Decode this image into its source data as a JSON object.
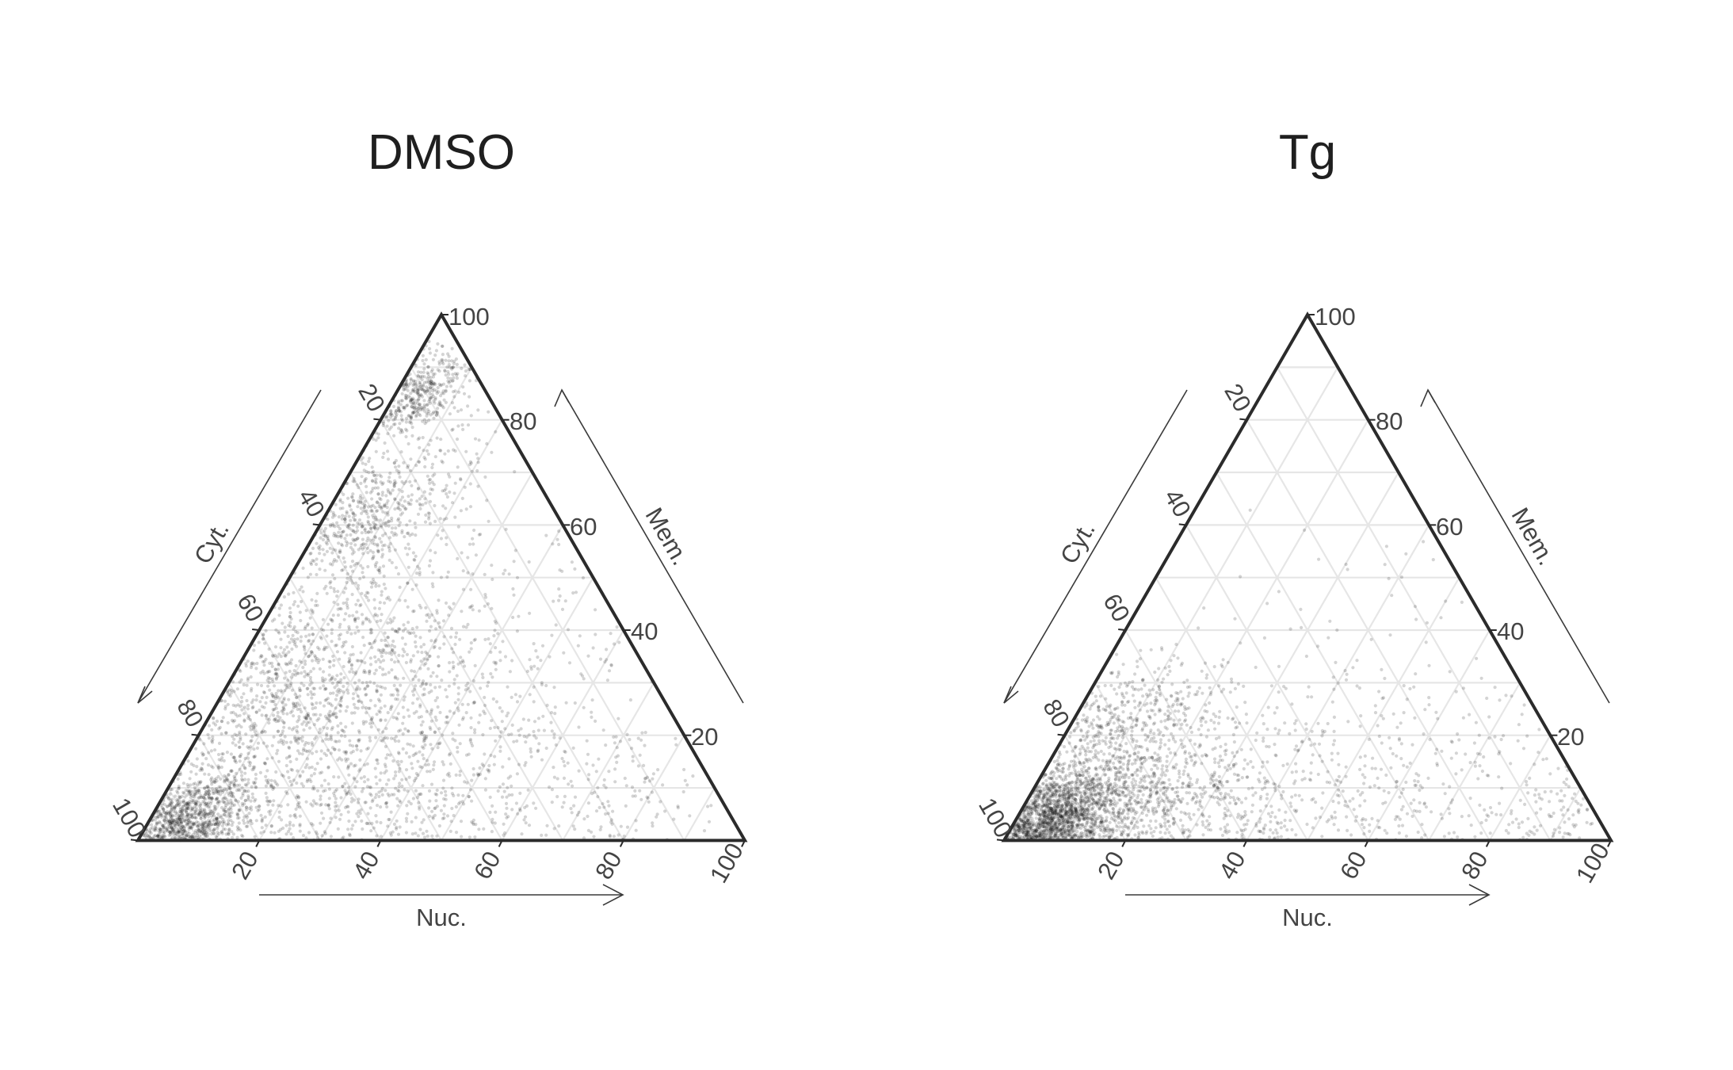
{
  "chart_data": [
    {
      "type": "scatter",
      "subtype": "ternary",
      "title": "DMSO",
      "axes": {
        "bottom": {
          "label": "Nuc.",
          "ticks": [
            "20",
            "40",
            "60",
            "80",
            "100"
          ]
        },
        "left": {
          "label": "Cyt.",
          "ticks": [
            "20",
            "40",
            "60",
            "80",
            "100"
          ]
        },
        "right": {
          "label": "Mem.",
          "ticks": [
            "20",
            "40",
            "60",
            "80",
            "100"
          ]
        }
      },
      "range": [
        0,
        100
      ],
      "grid": true,
      "point_color": "#000000",
      "density_clusters": [
        {
          "nuc": 6,
          "mem": 3,
          "count": 1400,
          "spread": 5
        },
        {
          "nuc": 12,
          "mem": 30,
          "count": 1200,
          "spread": 11
        },
        {
          "nuc": 7,
          "mem": 62,
          "count": 700,
          "spread": 7
        },
        {
          "nuc": 4,
          "mem": 85,
          "count": 500,
          "spread": 4
        },
        {
          "nuc": 30,
          "mem": 8,
          "count": 700,
          "spread": 12
        },
        {
          "nuc": 55,
          "mem": 3,
          "count": 400,
          "spread": 15
        },
        {
          "nuc": 82,
          "mem": 2,
          "count": 200,
          "spread": 10
        },
        {
          "nuc": 35,
          "mem": 30,
          "count": 450,
          "spread": 18
        }
      ]
    },
    {
      "type": "scatter",
      "subtype": "ternary",
      "title": "Tg",
      "axes": {
        "bottom": {
          "label": "Nuc.",
          "ticks": [
            "20",
            "40",
            "60",
            "80",
            "100"
          ]
        },
        "left": {
          "label": "Cyt.",
          "ticks": [
            "20",
            "40",
            "60",
            "80",
            "100"
          ]
        },
        "right": {
          "label": "Mem.",
          "ticks": [
            "20",
            "40",
            "60",
            "80",
            "100"
          ]
        }
      },
      "range": [
        0,
        100
      ],
      "grid": true,
      "point_color": "#000000",
      "density_clusters": [
        {
          "nuc": 5,
          "mem": 3,
          "count": 2200,
          "spread": 5
        },
        {
          "nuc": 14,
          "mem": 6,
          "count": 1200,
          "spread": 9
        },
        {
          "nuc": 7,
          "mem": 22,
          "count": 450,
          "spread": 7
        },
        {
          "nuc": 35,
          "mem": 3,
          "count": 700,
          "spread": 14
        },
        {
          "nuc": 65,
          "mem": 2,
          "count": 450,
          "spread": 14
        },
        {
          "nuc": 90,
          "mem": 2,
          "count": 200,
          "spread": 6
        },
        {
          "nuc": 40,
          "mem": 25,
          "count": 150,
          "spread": 20
        }
      ]
    }
  ]
}
